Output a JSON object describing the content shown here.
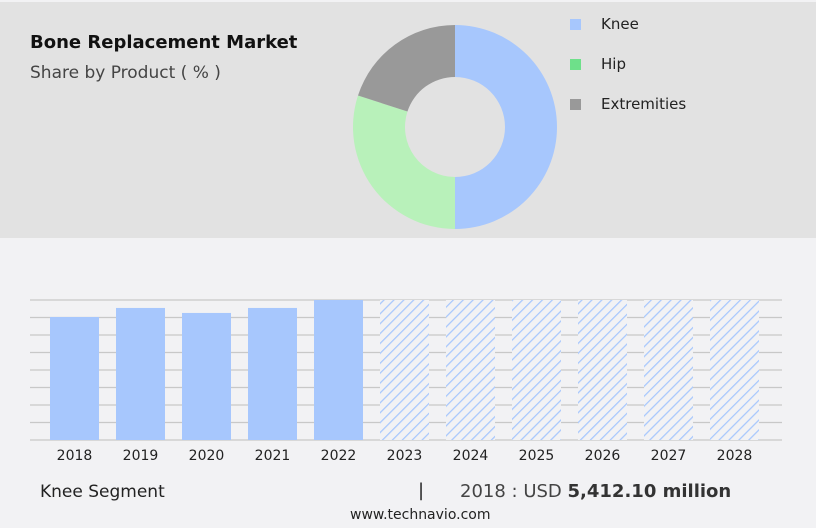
{
  "header": {
    "title": "Bone Replacement Market",
    "subtitle": "Share by Product ( % )"
  },
  "chart_data": [
    {
      "type": "pie",
      "variant": "donut",
      "categories": [
        "Knee",
        "Hip",
        "Extremities"
      ],
      "values": [
        50,
        30,
        20
      ],
      "colors": [
        "#a7c7fd",
        "#b8f1ba",
        "#999999"
      ],
      "legend_colors": [
        "#a7c7fd",
        "#6ee08a",
        "#999999"
      ],
      "legend_position": "right"
    },
    {
      "type": "bar",
      "categories": [
        "2018",
        "2019",
        "2020",
        "2021",
        "2022",
        "2023",
        "2024",
        "2025",
        "2026",
        "2027",
        "2028"
      ],
      "values": [
        5412.1,
        5810,
        5590,
        5810,
        6160,
        null,
        null,
        null,
        null,
        null,
        null
      ],
      "forecast": [
        false,
        false,
        false,
        false,
        false,
        true,
        true,
        true,
        true,
        true,
        true
      ],
      "unit": "USD million",
      "ylim": [
        0,
        6160
      ],
      "grid": true,
      "bar_color": "#a7c7fd"
    }
  ],
  "footer": {
    "segment": "Knee Segment",
    "separator": "|",
    "value_prefix": "2018 : USD",
    "value": "5,412.10 million",
    "source": "www.technavio.com"
  }
}
